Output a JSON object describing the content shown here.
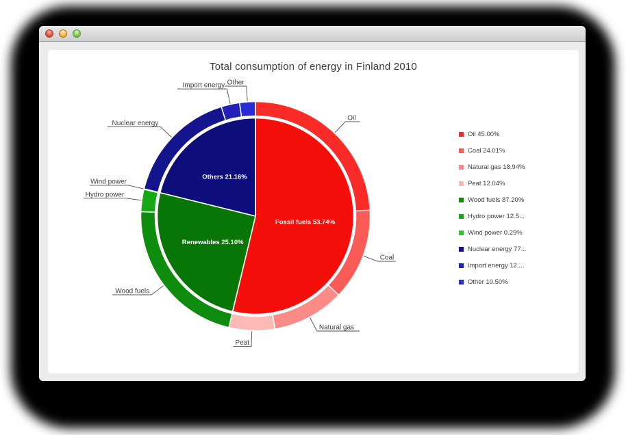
{
  "window": {
    "controls": [
      {
        "name": "close"
      },
      {
        "name": "minimize"
      },
      {
        "name": "zoom"
      }
    ]
  },
  "chart_data": {
    "type": "pie",
    "variant": "donut-breakdown",
    "title": "Total consumption of energy in Finland 2010",
    "legend_position": "right",
    "main_series": [
      {
        "label": "Fossil fuels",
        "pct": 53.74,
        "display": "Fossil fuels 53.74%",
        "color": "#f50f0b"
      },
      {
        "label": "Renewables",
        "pct": 25.1,
        "display": "Renewables 25.10%",
        "color": "#077607"
      },
      {
        "label": "Others",
        "pct": 21.16,
        "display": "Others 21.16%",
        "color": "#0d0d7b"
      }
    ],
    "breakdown_series": [
      {
        "group": "Fossil fuels",
        "label": "Oil",
        "pct_of_group": 45.0,
        "color": "#fb2b28",
        "legend": "Oil 45.00%"
      },
      {
        "group": "Fossil fuels",
        "label": "Coal",
        "pct_of_group": 24.01,
        "color": "#fb5b57",
        "legend": "Coal 24.01%"
      },
      {
        "group": "Fossil fuels",
        "label": "Natural gas",
        "pct_of_group": 18.94,
        "color": "#fc8a86",
        "legend": "Natural gas 18.94%"
      },
      {
        "group": "Fossil fuels",
        "label": "Peat",
        "pct_of_group": 12.04,
        "color": "#fdb9b6",
        "legend": "Peat 12.04%"
      },
      {
        "group": "Renewables",
        "label": "Wood fuels",
        "pct_of_group": 87.2,
        "color": "#0e8c0e",
        "legend": "Wood fuels 87.20%"
      },
      {
        "group": "Renewables",
        "label": "Hydro power",
        "pct_of_group": 12.51,
        "color": "#17a817",
        "legend": "Hydro power 12.5..."
      },
      {
        "group": "Renewables",
        "label": "Wind power",
        "pct_of_group": 0.29,
        "color": "#2fc32f",
        "legend": "Wind power 0.29%"
      },
      {
        "group": "Others",
        "label": "Nuclear energy",
        "pct_of_group": 77.27,
        "color": "#14148e",
        "legend": "Nuclear energy 77..."
      },
      {
        "group": "Others",
        "label": "Import energy",
        "pct_of_group": 12.23,
        "color": "#2222ba",
        "legend": "Import energy 12...."
      },
      {
        "group": "Others",
        "label": "Other",
        "pct_of_group": 10.5,
        "color": "#2b2bd6",
        "legend": "Other 10.50%"
      }
    ]
  }
}
